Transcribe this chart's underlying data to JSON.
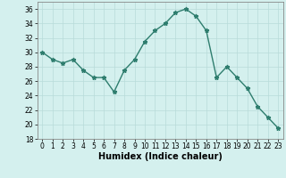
{
  "x": [
    0,
    1,
    2,
    3,
    4,
    5,
    6,
    7,
    8,
    9,
    10,
    11,
    12,
    13,
    14,
    15,
    16,
    17,
    18,
    19,
    20,
    21,
    22,
    23
  ],
  "y": [
    30,
    29,
    28.5,
    29,
    27.5,
    26.5,
    26.5,
    24.5,
    27.5,
    29,
    31.5,
    33,
    34,
    35.5,
    36,
    35,
    33,
    26.5,
    28,
    26.5,
    25,
    22.5,
    21,
    19.5
  ],
  "line_color": "#2e7d6e",
  "marker": "*",
  "marker_size": 3.5,
  "background_color": "#d4f0ee",
  "grid_color": "#b8dbd9",
  "xlabel": "Humidex (Indice chaleur)",
  "ylim": [
    18,
    37
  ],
  "xlim": [
    -0.5,
    23.5
  ],
  "yticks": [
    18,
    20,
    22,
    24,
    26,
    28,
    30,
    32,
    34,
    36
  ],
  "xticks": [
    0,
    1,
    2,
    3,
    4,
    5,
    6,
    7,
    8,
    9,
    10,
    11,
    12,
    13,
    14,
    15,
    16,
    17,
    18,
    19,
    20,
    21,
    22,
    23
  ],
  "tick_fontsize": 5.5,
  "xlabel_fontsize": 7,
  "line_width": 1.0
}
